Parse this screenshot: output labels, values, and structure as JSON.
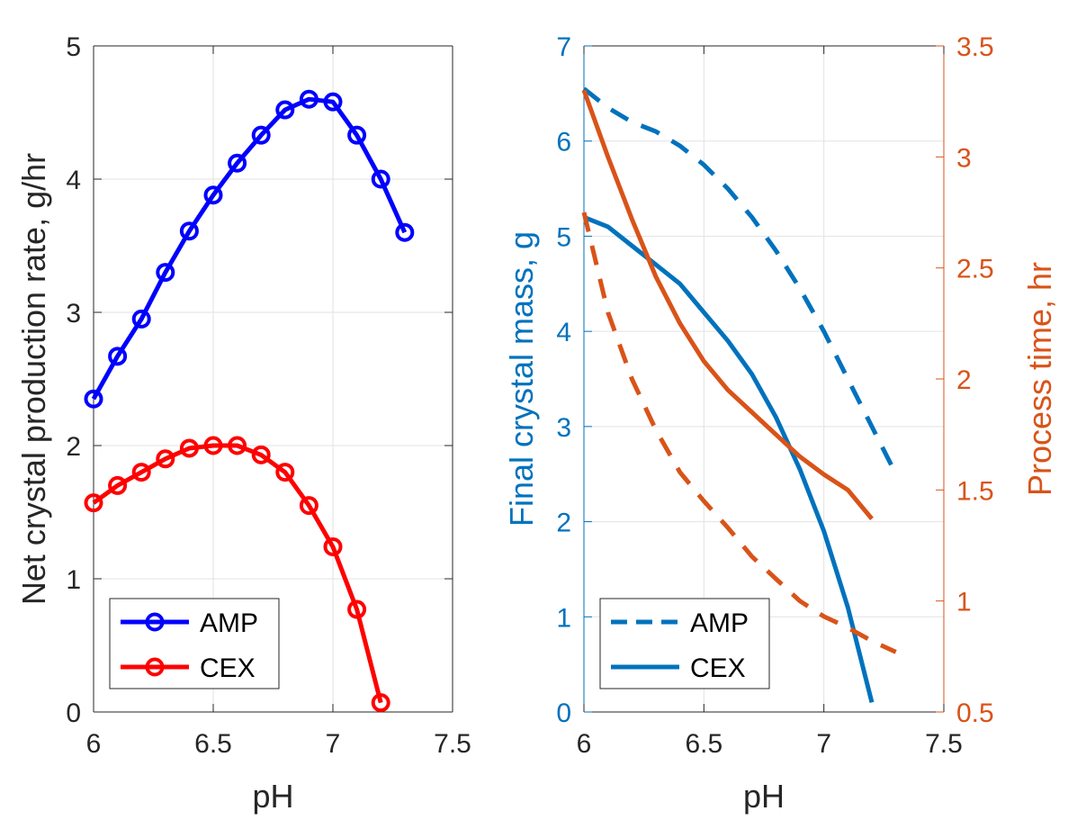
{
  "chart_data": [
    {
      "type": "line",
      "xlabel": "pH",
      "ylabel": "Net crystal production rate, g/hr",
      "xlim": [
        6,
        7.5
      ],
      "ylim": [
        0,
        5
      ],
      "xticks": [
        "6",
        "6.5",
        "7",
        "7.5"
      ],
      "yticks": [
        "0",
        "1",
        "2",
        "3",
        "4",
        "5"
      ],
      "grid": true,
      "legend_position": "bottom-left",
      "series": [
        {
          "name": "AMP",
          "color": "#0000ff",
          "marker": "circle",
          "x": [
            6.0,
            6.1,
            6.2,
            6.3,
            6.4,
            6.5,
            6.6,
            6.7,
            6.8,
            6.9,
            7.0,
            7.1,
            7.2,
            7.3
          ],
          "y": [
            2.35,
            2.67,
            2.95,
            3.3,
            3.61,
            3.88,
            4.12,
            4.33,
            4.52,
            4.6,
            4.58,
            4.33,
            4.0,
            3.6
          ]
        },
        {
          "name": "CEX",
          "color": "#ff0000",
          "marker": "circle",
          "x": [
            6.0,
            6.1,
            6.2,
            6.3,
            6.4,
            6.5,
            6.6,
            6.7,
            6.8,
            6.9,
            7.0,
            7.1,
            7.2
          ],
          "y": [
            1.57,
            1.7,
            1.8,
            1.9,
            1.98,
            2.0,
            2.0,
            1.93,
            1.8,
            1.55,
            1.24,
            0.77,
            0.07
          ]
        }
      ]
    },
    {
      "type": "line",
      "xlabel": "pH",
      "ylabel": "Final crystal mass, g",
      "ylabel_right": "Process time, hr",
      "xlim": [
        6,
        7.5
      ],
      "ylim": [
        0,
        7
      ],
      "ylim_right": [
        0.5,
        3.5
      ],
      "xticks": [
        "6",
        "6.5",
        "7",
        "7.5"
      ],
      "yticks": [
        "0",
        "1",
        "2",
        "3",
        "4",
        "5",
        "6",
        "7"
      ],
      "yticks_right": [
        "0.5",
        "1",
        "1.5",
        "2",
        "2.5",
        "3",
        "3.5"
      ],
      "grid": true,
      "legend_position": "bottom-left",
      "left_axis_color": "#0072bd",
      "right_axis_color": "#d95319",
      "series": [
        {
          "name": "AMP",
          "axis": "left",
          "color": "#0072bd",
          "dash": true,
          "x": [
            6.0,
            6.1,
            6.2,
            6.3,
            6.4,
            6.5,
            6.6,
            6.7,
            6.8,
            6.9,
            7.0,
            7.1,
            7.2,
            7.3
          ],
          "y": [
            6.55,
            6.35,
            6.2,
            6.1,
            5.95,
            5.75,
            5.5,
            5.2,
            4.85,
            4.45,
            4.0,
            3.5,
            3.0,
            2.5
          ]
        },
        {
          "name": "CEX",
          "axis": "left",
          "color": "#0072bd",
          "dash": false,
          "x": [
            6.0,
            6.1,
            6.2,
            6.3,
            6.4,
            6.5,
            6.6,
            6.7,
            6.8,
            6.9,
            7.0,
            7.1,
            7.2
          ],
          "y": [
            5.2,
            5.1,
            4.9,
            4.7,
            4.5,
            4.2,
            3.9,
            3.55,
            3.1,
            2.55,
            1.9,
            1.1,
            0.1
          ]
        },
        {
          "axis": "right",
          "color": "#d95319",
          "dash": true,
          "x": [
            6.0,
            6.1,
            6.2,
            6.3,
            6.4,
            6.5,
            6.6,
            6.7,
            6.8,
            6.9,
            7.0,
            7.1,
            7.2,
            7.3
          ],
          "y": [
            2.75,
            2.3,
            2.0,
            1.77,
            1.58,
            1.45,
            1.33,
            1.2,
            1.1,
            1.0,
            0.93,
            0.88,
            0.82,
            0.77
          ]
        },
        {
          "axis": "right",
          "color": "#d95319",
          "dash": false,
          "x": [
            6.0,
            6.1,
            6.2,
            6.3,
            6.4,
            6.5,
            6.6,
            6.7,
            6.8,
            6.9,
            7.0,
            7.1,
            7.2
          ],
          "y": [
            3.3,
            3.0,
            2.72,
            2.46,
            2.25,
            2.08,
            1.95,
            1.85,
            1.75,
            1.65,
            1.57,
            1.5,
            1.37
          ]
        }
      ]
    }
  ]
}
